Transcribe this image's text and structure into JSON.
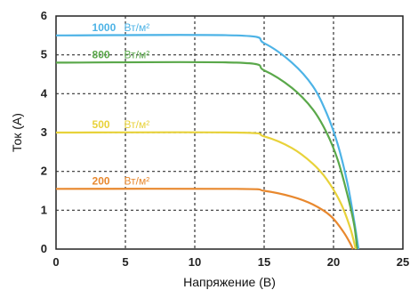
{
  "chart_data": {
    "type": "line",
    "xlabel": "Напряжение (B)",
    "ylabel": "Ток (A)",
    "xlim": [
      0,
      25
    ],
    "ylim": [
      0,
      6
    ],
    "xticks": [
      "0",
      "5",
      "10",
      "15",
      "20",
      "25"
    ],
    "yticks": [
      "0",
      "1",
      "2",
      "3",
      "4",
      "5",
      "6"
    ],
    "grid": true,
    "series": [
      {
        "name": "1000",
        "unit": "Вт/м²",
        "color": "#4db3e6",
        "points": [
          [
            0,
            5.5
          ],
          [
            13,
            5.5
          ],
          [
            15,
            5.3
          ],
          [
            17,
            4.8
          ],
          [
            18.5,
            4.2
          ],
          [
            19.5,
            3.5
          ],
          [
            20.3,
            2.7
          ],
          [
            21,
            1.7
          ],
          [
            21.5,
            0.7
          ],
          [
            21.8,
            0
          ]
        ]
      },
      {
        "name": "800",
        "unit": "Вт/м²",
        "color": "#5aa84a",
        "points": [
          [
            0,
            4.8
          ],
          [
            13,
            4.8
          ],
          [
            15,
            4.6
          ],
          [
            17,
            4.15
          ],
          [
            18.5,
            3.6
          ],
          [
            19.5,
            3.0
          ],
          [
            20.3,
            2.3
          ],
          [
            21,
            1.4
          ],
          [
            21.5,
            0.6
          ],
          [
            21.7,
            0
          ]
        ]
      },
      {
        "name": "500",
        "unit": "Вт/м²",
        "color": "#e8d23a",
        "points": [
          [
            0,
            3.0
          ],
          [
            13,
            3.0
          ],
          [
            15,
            2.9
          ],
          [
            17,
            2.6
          ],
          [
            18.5,
            2.2
          ],
          [
            19.5,
            1.8
          ],
          [
            20.5,
            1.2
          ],
          [
            21.2,
            0.55
          ],
          [
            21.6,
            0
          ]
        ]
      },
      {
        "name": "200",
        "unit": "Вт/м²",
        "color": "#e8882e",
        "points": [
          [
            0,
            1.55
          ],
          [
            13,
            1.55
          ],
          [
            15,
            1.5
          ],
          [
            17,
            1.35
          ],
          [
            18.5,
            1.15
          ],
          [
            19.8,
            0.85
          ],
          [
            20.7,
            0.45
          ],
          [
            21.2,
            0.15
          ],
          [
            21.4,
            0
          ]
        ]
      }
    ]
  }
}
